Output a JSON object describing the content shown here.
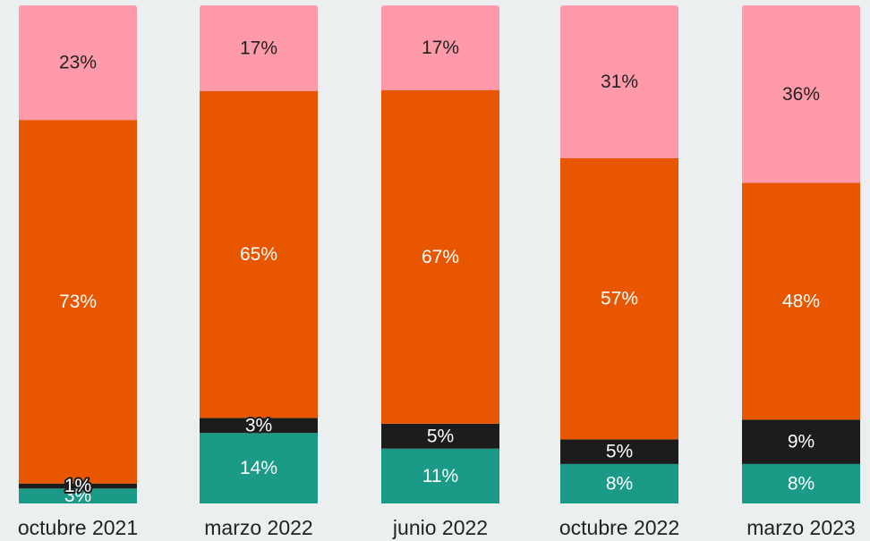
{
  "chart_data": {
    "type": "bar",
    "stacked": true,
    "normalized": true,
    "categories": [
      "octubre 2021",
      "marzo 2022",
      "junio 2022",
      "octubre 2022",
      "marzo 2023"
    ],
    "series": [
      {
        "values": [
          3,
          14,
          11,
          8,
          8
        ],
        "color": "#1b9a87",
        "labels": [
          "3%",
          "14%",
          "11%",
          "8%",
          "8%"
        ]
      },
      {
        "values": [
          1,
          3,
          5,
          5,
          9
        ],
        "color": "#1c1c1c",
        "labels": [
          "1%",
          "3%",
          "5%",
          "5%",
          "9%"
        ]
      },
      {
        "values": [
          73,
          65,
          67,
          57,
          48
        ],
        "color": "#e95600",
        "labels": [
          "73%",
          "65%",
          "67%",
          "57%",
          "48%"
        ]
      },
      {
        "values": [
          23,
          17,
          17,
          31,
          36
        ],
        "color": "#ff9aab",
        "labels": [
          "23%",
          "17%",
          "17%",
          "31%",
          "36%"
        ]
      }
    ],
    "label_colors": [
      "#ffffff",
      "#ffffff",
      "#ffffff",
      "#222222"
    ],
    "ylim": [
      0,
      100
    ],
    "grid": false,
    "legend": "none",
    "background": "#eceff0"
  }
}
